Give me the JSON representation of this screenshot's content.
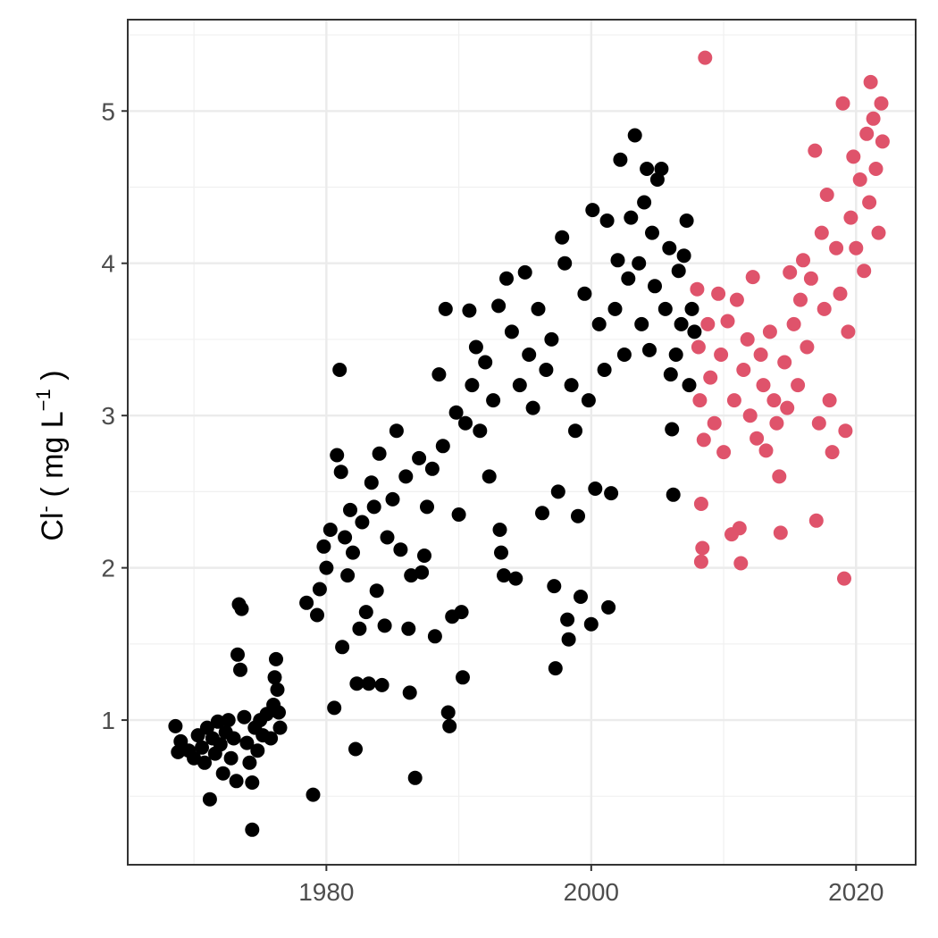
{
  "chart_data": {
    "type": "scatter",
    "title": "",
    "xlabel": "",
    "ylabel": {
      "main": "Cl",
      "sup": "-",
      "open": " ( mg L",
      "exponent": "−1",
      "close": " )"
    },
    "xlim": [
      1965,
      2024.5
    ],
    "ylim": [
      0.05,
      5.6
    ],
    "x_ticks": [
      1980,
      2000,
      2020
    ],
    "y_ticks": [
      1,
      2,
      3,
      4,
      5
    ],
    "grid": true,
    "legend": "none",
    "series": [
      {
        "color": "#000000",
        "points": [
          [
            1968.6,
            0.96
          ],
          [
            1969.0,
            0.86
          ],
          [
            1968.8,
            0.79
          ],
          [
            1969.6,
            0.8
          ],
          [
            1970.0,
            0.75
          ],
          [
            1970.3,
            0.9
          ],
          [
            1970.6,
            0.82
          ],
          [
            1970.8,
            0.72
          ],
          [
            1971.0,
            0.95
          ],
          [
            1971.2,
            0.48
          ],
          [
            1971.4,
            0.88
          ],
          [
            1971.6,
            0.78
          ],
          [
            1971.8,
            0.99
          ],
          [
            1972.0,
            0.84
          ],
          [
            1972.2,
            0.65
          ],
          [
            1972.4,
            0.92
          ],
          [
            1972.6,
            1.0
          ],
          [
            1972.8,
            0.75
          ],
          [
            1973.0,
            0.88
          ],
          [
            1973.2,
            0.6
          ],
          [
            1973.3,
            1.43
          ],
          [
            1973.4,
            1.76
          ],
          [
            1973.6,
            1.73
          ],
          [
            1973.5,
            1.33
          ],
          [
            1973.8,
            1.02
          ],
          [
            1974.0,
            0.85
          ],
          [
            1974.2,
            0.72
          ],
          [
            1974.4,
            0.59
          ],
          [
            1974.4,
            0.28
          ],
          [
            1974.6,
            0.95
          ],
          [
            1974.8,
            0.8
          ],
          [
            1975.0,
            1.0
          ],
          [
            1975.2,
            0.9
          ],
          [
            1975.5,
            1.04
          ],
          [
            1975.8,
            0.88
          ],
          [
            1976.0,
            1.1
          ],
          [
            1976.1,
            1.28
          ],
          [
            1976.2,
            1.4
          ],
          [
            1976.3,
            1.2
          ],
          [
            1976.4,
            1.05
          ],
          [
            1976.5,
            0.95
          ],
          [
            1978.5,
            1.77
          ],
          [
            1979.0,
            0.51
          ],
          [
            1979.3,
            1.69
          ],
          [
            1979.5,
            1.86
          ],
          [
            1979.8,
            2.14
          ],
          [
            1980.0,
            2.0
          ],
          [
            1980.3,
            2.25
          ],
          [
            1980.6,
            1.08
          ],
          [
            1980.8,
            2.74
          ],
          [
            1981.0,
            3.3
          ],
          [
            1981.1,
            2.63
          ],
          [
            1981.2,
            1.48
          ],
          [
            1981.4,
            2.2
          ],
          [
            1981.6,
            1.95
          ],
          [
            1981.8,
            2.38
          ],
          [
            1982.0,
            2.1
          ],
          [
            1982.2,
            0.81
          ],
          [
            1982.3,
            1.24
          ],
          [
            1982.5,
            1.6
          ],
          [
            1982.7,
            2.3
          ],
          [
            1983.0,
            1.71
          ],
          [
            1983.2,
            1.24
          ],
          [
            1983.4,
            2.56
          ],
          [
            1983.6,
            2.4
          ],
          [
            1983.8,
            1.85
          ],
          [
            1984.0,
            2.75
          ],
          [
            1984.2,
            1.23
          ],
          [
            1984.4,
            1.62
          ],
          [
            1984.6,
            2.2
          ],
          [
            1985.0,
            2.45
          ],
          [
            1985.3,
            2.9
          ],
          [
            1985.6,
            2.12
          ],
          [
            1986.0,
            2.6
          ],
          [
            1986.2,
            1.6
          ],
          [
            1986.3,
            1.18
          ],
          [
            1986.4,
            1.95
          ],
          [
            1986.7,
            0.62
          ],
          [
            1987.0,
            2.72
          ],
          [
            1987.2,
            1.97
          ],
          [
            1987.4,
            2.08
          ],
          [
            1987.6,
            2.4
          ],
          [
            1988.0,
            2.65
          ],
          [
            1988.2,
            1.55
          ],
          [
            1988.5,
            3.27
          ],
          [
            1988.8,
            2.8
          ],
          [
            1989.0,
            3.7
          ],
          [
            1989.2,
            1.05
          ],
          [
            1989.3,
            0.96
          ],
          [
            1989.5,
            1.68
          ],
          [
            1989.8,
            3.02
          ],
          [
            1990.0,
            2.35
          ],
          [
            1990.2,
            1.71
          ],
          [
            1990.3,
            1.28
          ],
          [
            1990.5,
            2.95
          ],
          [
            1990.8,
            3.69
          ],
          [
            1991.0,
            3.2
          ],
          [
            1991.3,
            3.45
          ],
          [
            1991.6,
            2.9
          ],
          [
            1992.0,
            3.35
          ],
          [
            1992.3,
            2.6
          ],
          [
            1992.6,
            3.1
          ],
          [
            1993.0,
            3.72
          ],
          [
            1993.1,
            2.25
          ],
          [
            1993.2,
            2.1
          ],
          [
            1993.4,
            1.95
          ],
          [
            1993.6,
            3.9
          ],
          [
            1994.0,
            3.55
          ],
          [
            1994.3,
            1.93
          ],
          [
            1994.6,
            3.2
          ],
          [
            1995.0,
            3.94
          ],
          [
            1995.3,
            3.4
          ],
          [
            1995.6,
            3.05
          ],
          [
            1996.0,
            3.7
          ],
          [
            1996.3,
            2.36
          ],
          [
            1996.6,
            3.3
          ],
          [
            1997.0,
            3.5
          ],
          [
            1997.2,
            1.88
          ],
          [
            1997.3,
            1.34
          ],
          [
            1997.5,
            2.5
          ],
          [
            1997.8,
            4.17
          ],
          [
            1998.0,
            4.0
          ],
          [
            1998.2,
            1.66
          ],
          [
            1998.3,
            1.53
          ],
          [
            1998.5,
            3.2
          ],
          [
            1998.8,
            2.9
          ],
          [
            1999.0,
            2.34
          ],
          [
            1999.2,
            1.81
          ],
          [
            1999.5,
            3.8
          ],
          [
            1999.8,
            3.1
          ],
          [
            2000.0,
            1.63
          ],
          [
            2000.1,
            4.35
          ],
          [
            2000.3,
            2.52
          ],
          [
            2000.6,
            3.6
          ],
          [
            2001.0,
            3.3
          ],
          [
            2001.2,
            4.28
          ],
          [
            2001.3,
            1.74
          ],
          [
            2001.5,
            2.49
          ],
          [
            2001.8,
            3.7
          ],
          [
            2002.0,
            4.02
          ],
          [
            2002.2,
            4.68
          ],
          [
            2002.5,
            3.4
          ],
          [
            2002.8,
            3.9
          ],
          [
            2003.0,
            4.3
          ],
          [
            2003.3,
            4.84
          ],
          [
            2003.6,
            4.0
          ],
          [
            2003.8,
            3.6
          ],
          [
            2004.0,
            4.4
          ],
          [
            2004.2,
            4.62
          ],
          [
            2004.4,
            3.43
          ],
          [
            2004.6,
            4.2
          ],
          [
            2004.8,
            3.85
          ],
          [
            2005.0,
            4.55
          ],
          [
            2005.3,
            4.62
          ],
          [
            2005.6,
            3.7
          ],
          [
            2005.9,
            4.1
          ],
          [
            2006.0,
            3.27
          ],
          [
            2006.1,
            2.91
          ],
          [
            2006.2,
            2.48
          ],
          [
            2006.4,
            3.4
          ],
          [
            2006.6,
            3.95
          ],
          [
            2006.8,
            3.6
          ],
          [
            2007.0,
            4.05
          ],
          [
            2007.2,
            4.28
          ],
          [
            2007.4,
            3.2
          ],
          [
            2007.6,
            3.7
          ],
          [
            2007.8,
            3.55
          ]
        ]
      },
      {
        "color": "#df536b",
        "points": [
          [
            2008.0,
            3.83
          ],
          [
            2008.1,
            3.45
          ],
          [
            2008.2,
            3.1
          ],
          [
            2008.3,
            2.42
          ],
          [
            2008.3,
            2.04
          ],
          [
            2008.4,
            2.13
          ],
          [
            2008.5,
            2.84
          ],
          [
            2008.6,
            5.35
          ],
          [
            2008.8,
            3.6
          ],
          [
            2009.0,
            3.25
          ],
          [
            2009.3,
            2.95
          ],
          [
            2009.6,
            3.8
          ],
          [
            2009.8,
            3.4
          ],
          [
            2010.0,
            2.76
          ],
          [
            2010.3,
            3.62
          ],
          [
            2010.6,
            2.22
          ],
          [
            2010.8,
            3.1
          ],
          [
            2011.0,
            3.76
          ],
          [
            2011.2,
            2.26
          ],
          [
            2011.3,
            2.03
          ],
          [
            2011.5,
            3.3
          ],
          [
            2011.8,
            3.5
          ],
          [
            2012.0,
            3.0
          ],
          [
            2012.2,
            3.91
          ],
          [
            2012.5,
            2.85
          ],
          [
            2012.8,
            3.4
          ],
          [
            2013.0,
            3.2
          ],
          [
            2013.2,
            2.77
          ],
          [
            2013.5,
            3.55
          ],
          [
            2013.8,
            3.1
          ],
          [
            2014.0,
            2.95
          ],
          [
            2014.2,
            2.6
          ],
          [
            2014.3,
            2.23
          ],
          [
            2014.6,
            3.35
          ],
          [
            2014.8,
            3.05
          ],
          [
            2015.0,
            3.94
          ],
          [
            2015.3,
            3.6
          ],
          [
            2015.6,
            3.2
          ],
          [
            2015.8,
            3.76
          ],
          [
            2016.0,
            4.02
          ],
          [
            2016.3,
            3.45
          ],
          [
            2016.6,
            3.9
          ],
          [
            2016.9,
            4.74
          ],
          [
            2017.0,
            2.31
          ],
          [
            2017.2,
            2.95
          ],
          [
            2017.4,
            4.2
          ],
          [
            2017.6,
            3.7
          ],
          [
            2017.8,
            4.45
          ],
          [
            2018.0,
            3.1
          ],
          [
            2018.2,
            2.76
          ],
          [
            2018.5,
            4.1
          ],
          [
            2018.8,
            3.8
          ],
          [
            2019.0,
            5.05
          ],
          [
            2019.1,
            1.93
          ],
          [
            2019.2,
            2.9
          ],
          [
            2019.4,
            3.55
          ],
          [
            2019.6,
            4.3
          ],
          [
            2019.8,
            4.7
          ],
          [
            2020.0,
            4.1
          ],
          [
            2020.3,
            4.55
          ],
          [
            2020.6,
            3.95
          ],
          [
            2020.8,
            4.85
          ],
          [
            2021.0,
            4.4
          ],
          [
            2021.1,
            5.19
          ],
          [
            2021.3,
            4.95
          ],
          [
            2021.5,
            4.62
          ],
          [
            2021.7,
            4.2
          ],
          [
            2021.9,
            5.05
          ],
          [
            2022.0,
            4.8
          ]
        ]
      }
    ]
  }
}
